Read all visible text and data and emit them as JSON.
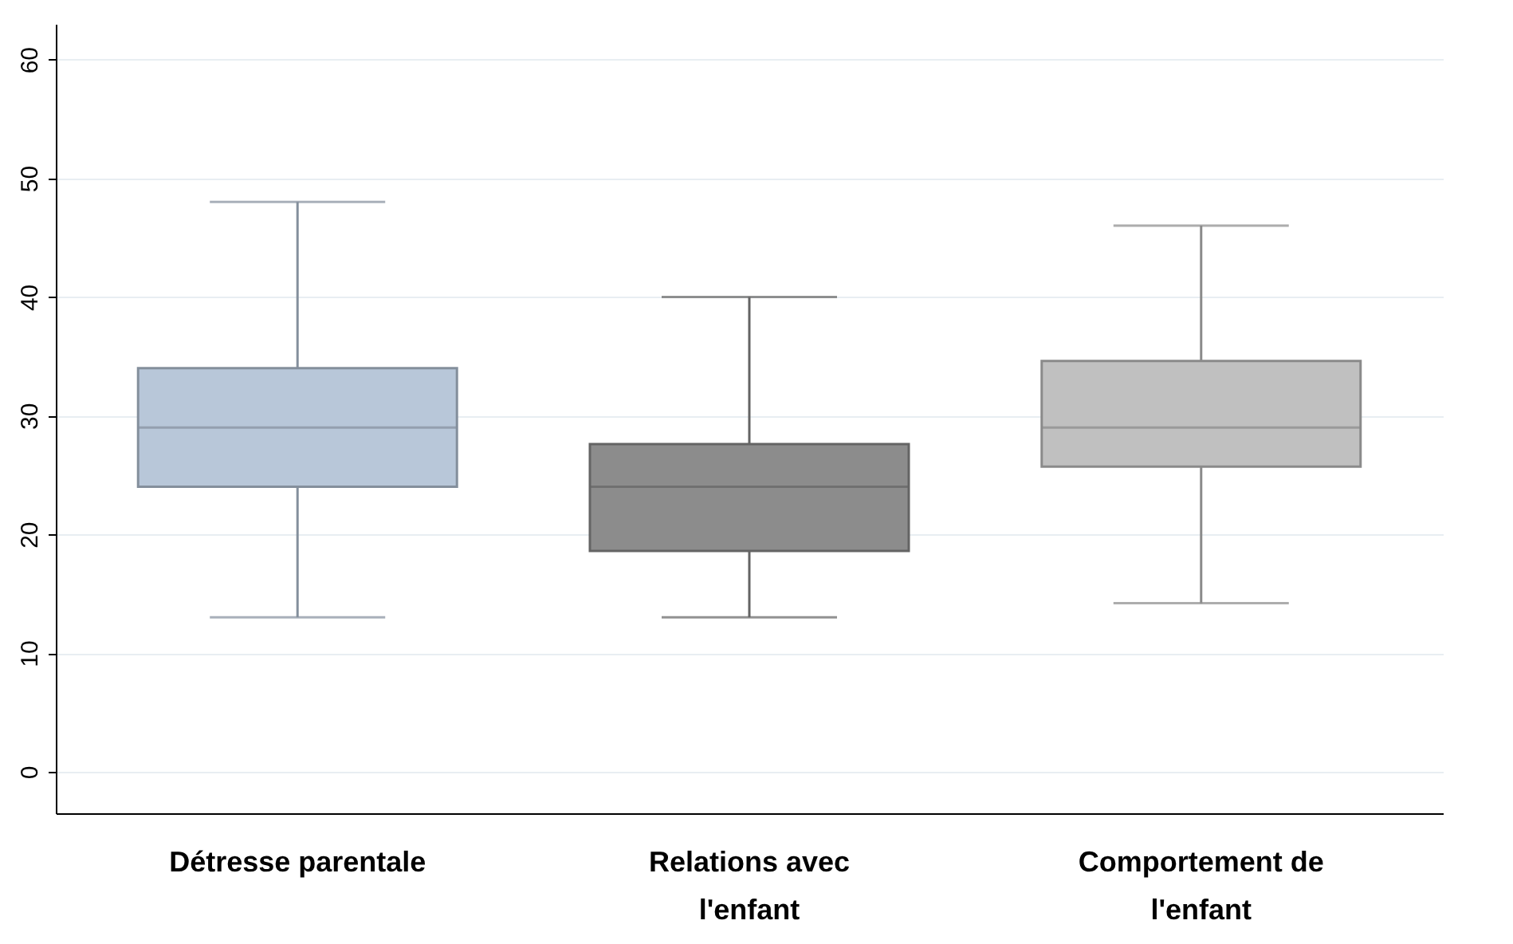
{
  "chart_data": {
    "type": "box",
    "categories": [
      "Détresse parentale",
      "Relations avec l'enfant",
      "Comportement de l'enfant"
    ],
    "boxes": [
      {
        "low": 13,
        "q1": 24,
        "median": 29,
        "q3": 34,
        "high": 48
      },
      {
        "low": 13,
        "q1": 18.6,
        "median": 24,
        "q3": 27.6,
        "high": 40
      },
      {
        "low": 14.2,
        "q1": 25.7,
        "median": 29,
        "q3": 34.6,
        "high": 46
      }
    ],
    "colors": [
      "#b8c7d9",
      "#8c8c8c",
      "#c0c0c0"
    ],
    "ylim": [
      -3.5,
      63
    ],
    "yticks": [
      0,
      10,
      20,
      30,
      40,
      50,
      60
    ],
    "grid": "y"
  }
}
